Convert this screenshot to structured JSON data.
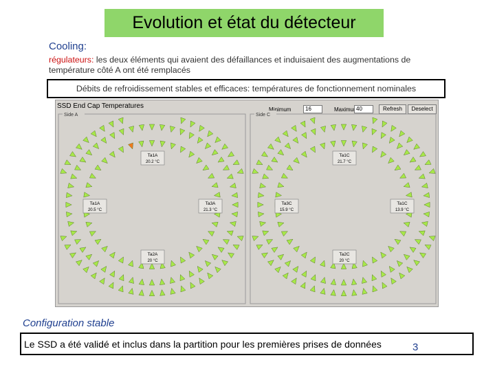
{
  "title": "Evolution et état du détecteur",
  "cooling_label": "Cooling:",
  "regulators": {
    "keyword": "régulateurs:",
    "text": " les deux éléments qui avaient des défaillances et induisaient des augmentations de température côté A ont été remplacés"
  },
  "debits_text": "Débits de refroidissement stables et efficaces: températures de fonctionnement nominales",
  "panel": {
    "title": "SSD End Cap Temperatures",
    "minimum_label": "Minimum",
    "minimum_value": "16",
    "maximum_label": "Maximum",
    "maximum_value": "40",
    "refresh_label": "Refresh",
    "deselect_label": "Deselect"
  },
  "sides": [
    {
      "label": "Side A",
      "readouts": {
        "top": {
          "name": "Ta1A",
          "value": "20.2 °C"
        },
        "left": {
          "name": "Ta1A",
          "value": "20.5 °C"
        },
        "right": {
          "name": "Ta3A",
          "value": "21.3 °C"
        },
        "bottom": {
          "name": "Ta2A",
          "value": "20 °C"
        }
      },
      "alert_index": 38
    },
    {
      "label": "Side C",
      "readouts": {
        "top": {
          "name": "Ta1C",
          "value": "21.7 °C"
        },
        "left": {
          "name": "Ta3C",
          "value": "15.9 °C"
        },
        "right": {
          "name": "Ta1C",
          "value": "13.9 °C"
        },
        "bottom": {
          "name": "Ta2C",
          "value": "20 °C"
        }
      },
      "alert_index": -1
    }
  ],
  "colors": {
    "title_bg": "#8fd66a",
    "module_ok": "#a8e84a",
    "module_alert": "#f07a1e",
    "blue_text": "#1f3f8f"
  },
  "config_label": "Configuration stable",
  "final_text": "Le SSD a été validé et inclus dans la partition pour les premières prises de données",
  "page_number": "3"
}
